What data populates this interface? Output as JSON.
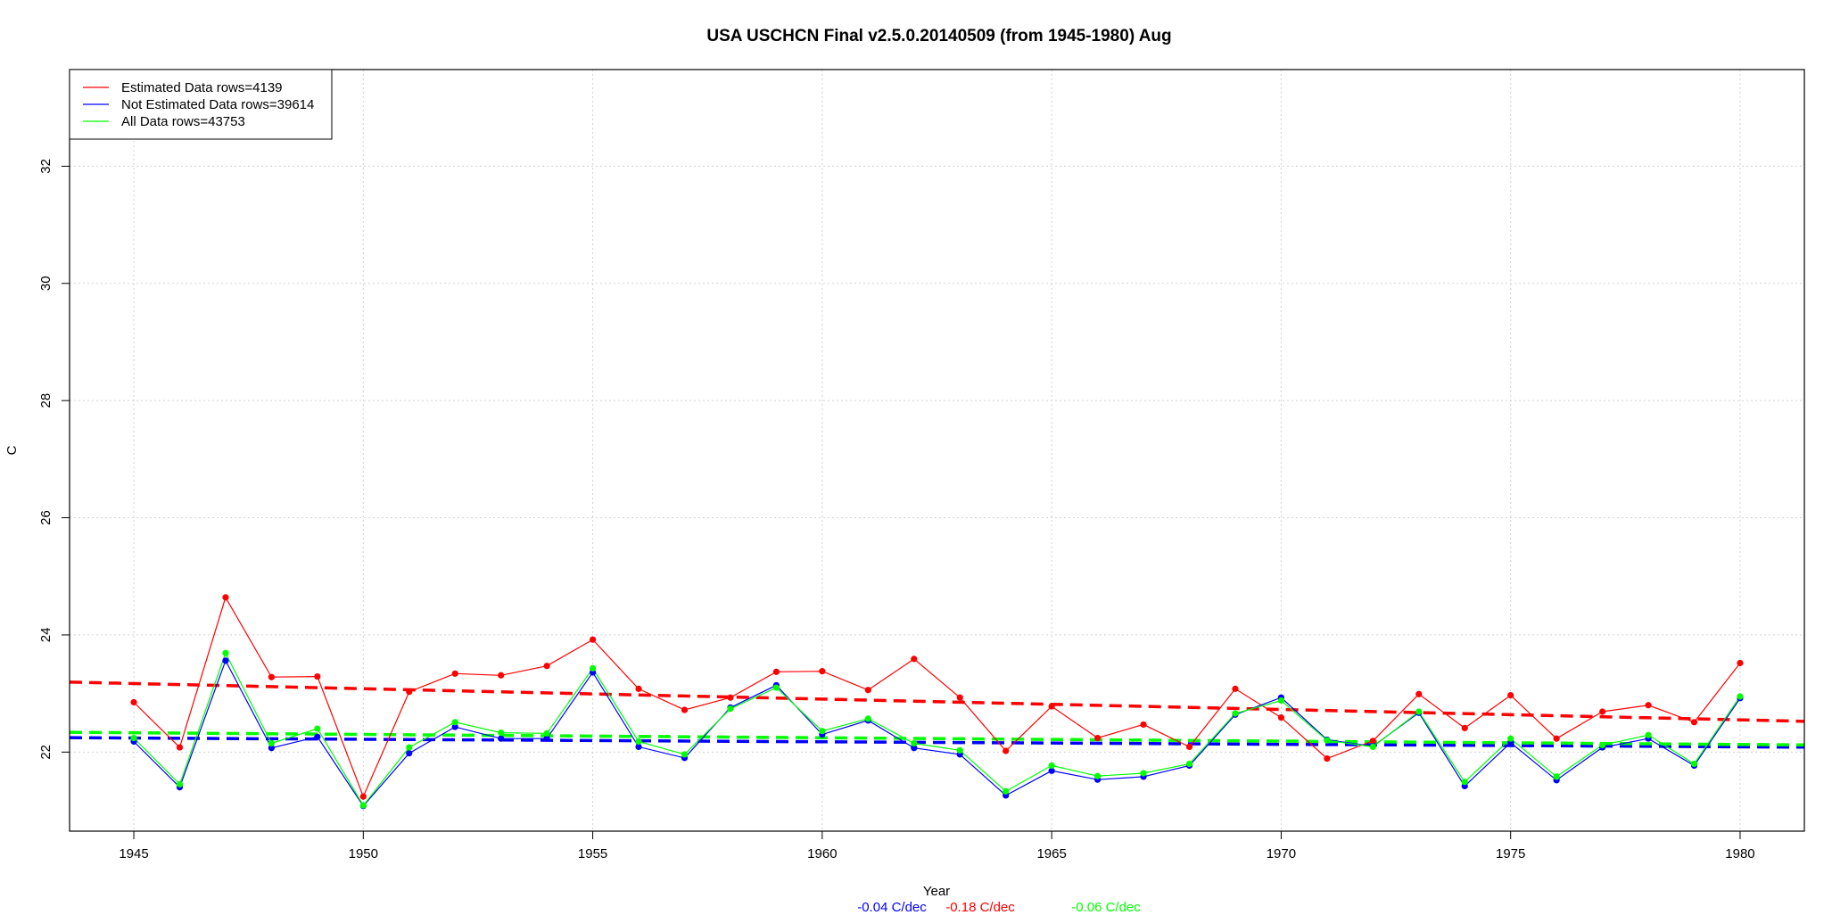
{
  "chart_data": {
    "type": "line",
    "title": "USA USCHCN Final v2.5.0.20140509 (from 1945-1980) Aug",
    "xlabel": "Year",
    "ylabel": "C",
    "xlim": [
      1943.6,
      1981.4
    ],
    "ylim": [
      20.65,
      33.65
    ],
    "xticks": [
      1945,
      1950,
      1955,
      1960,
      1965,
      1970,
      1975,
      1980
    ],
    "yticks": [
      22,
      24,
      26,
      28,
      30,
      32
    ],
    "grid": true,
    "legend_position": "top-left",
    "x": [
      1945,
      1946,
      1947,
      1948,
      1949,
      1950,
      1951,
      1952,
      1953,
      1954,
      1955,
      1956,
      1957,
      1958,
      1959,
      1960,
      1961,
      1962,
      1963,
      1964,
      1965,
      1966,
      1967,
      1968,
      1969,
      1970,
      1971,
      1972,
      1973,
      1974,
      1975,
      1976,
      1977,
      1978,
      1979,
      1980
    ],
    "series": [
      {
        "name": "Estimated Data rows=4139",
        "color": "#ff0000",
        "values": [
          22.85,
          22.08,
          24.64,
          23.28,
          23.29,
          21.24,
          23.03,
          23.34,
          23.31,
          23.47,
          23.92,
          23.08,
          22.72,
          22.93,
          23.37,
          23.38,
          23.06,
          23.59,
          22.93,
          22.02,
          22.78,
          22.24,
          22.47,
          22.09,
          23.08,
          22.59,
          21.89,
          22.19,
          22.99,
          22.41,
          22.97,
          22.23,
          22.69,
          22.8,
          22.51,
          23.52
        ],
        "trend": [
          23.17,
          22.55
        ],
        "trend_label": "-0.18 C/dec"
      },
      {
        "name": "Not Estimated Data rows=39614",
        "color": "#0000ff",
        "values": [
          22.18,
          21.4,
          23.56,
          22.07,
          22.26,
          21.08,
          21.98,
          22.43,
          22.23,
          22.23,
          23.36,
          22.09,
          21.9,
          22.76,
          23.14,
          22.3,
          22.54,
          22.07,
          21.96,
          21.26,
          21.68,
          21.53,
          21.58,
          21.77,
          22.64,
          22.93,
          22.21,
          22.1,
          22.67,
          21.42,
          22.16,
          21.52,
          22.08,
          22.23,
          21.77,
          22.92
        ],
        "trend": [
          22.24,
          22.09
        ],
        "trend_label": "-0.04 C/dec"
      },
      {
        "name": "All Data rows=43753",
        "color": "#00ff00",
        "values": [
          22.24,
          21.45,
          23.69,
          22.15,
          22.4,
          21.09,
          22.08,
          22.51,
          22.33,
          22.32,
          23.43,
          22.18,
          21.96,
          22.74,
          23.1,
          22.36,
          22.57,
          22.15,
          22.03,
          21.33,
          21.77,
          21.59,
          21.64,
          21.8,
          22.66,
          22.88,
          22.2,
          22.09,
          22.69,
          21.49,
          22.23,
          21.58,
          22.12,
          22.29,
          21.8,
          22.95
        ],
        "trend": [
          22.33,
          22.13
        ],
        "trend_label": "-0.06 C/dec"
      }
    ]
  }
}
